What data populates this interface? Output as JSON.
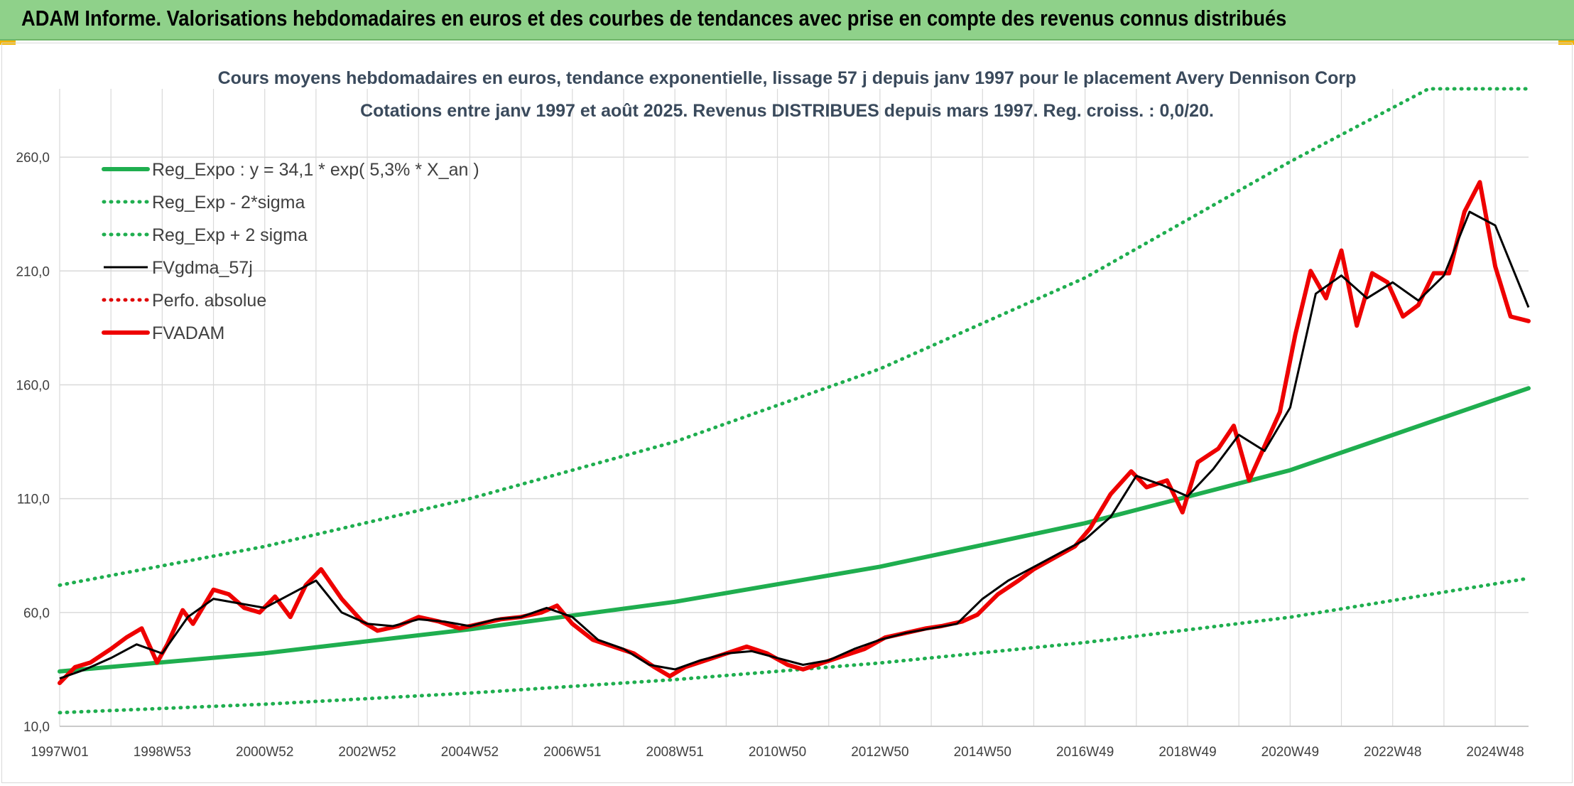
{
  "banner": {
    "title": "ADAM Informe. Valorisations hebdomadaires en euros et des courbes de tendances avec prise en compte des revenus connus distribués"
  },
  "colors": {
    "banner_bg": "#8fd18a",
    "reg_expo": "#1fae4f",
    "sigma": "#1fae4f",
    "fvgdma": "#000000",
    "perfo": "#e00000",
    "fvadam": "#ee0000",
    "grid": "#d9d9d9"
  },
  "chart_data": {
    "type": "line",
    "title": "Cours moyens hebdomadaires en euros, tendance exponentielle, lissage 57 j depuis janv 1997 pour le placement Avery Dennison Corp",
    "subtitle": "Cotations entre janv 1997 et août 2025. Revenus DISTRIBUES depuis mars 1997. Reg. croiss. : 0,0/20.",
    "xlabel": "",
    "ylabel": "",
    "x_range": [
      1997.0,
      2025.65
    ],
    "ylim": [
      10,
      290
    ],
    "y_ticks": [
      10,
      60,
      110,
      160,
      210,
      260
    ],
    "y_tick_labels": [
      "10,0",
      "60,0",
      "110,0",
      "160,0",
      "210,0",
      "260,0"
    ],
    "x_ticks": [
      {
        "x": 1997.0,
        "label": "1997W01"
      },
      {
        "x": 1999.0,
        "label": "1998W53"
      },
      {
        "x": 2001.0,
        "label": "2000W52"
      },
      {
        "x": 2003.0,
        "label": "2002W52"
      },
      {
        "x": 2005.0,
        "label": "2004W52"
      },
      {
        "x": 2007.0,
        "label": "2006W51"
      },
      {
        "x": 2009.0,
        "label": "2008W51"
      },
      {
        "x": 2011.0,
        "label": "2010W50"
      },
      {
        "x": 2013.0,
        "label": "2012W50"
      },
      {
        "x": 2015.0,
        "label": "2014W50"
      },
      {
        "x": 2017.0,
        "label": "2016W49"
      },
      {
        "x": 2019.0,
        "label": "2018W49"
      },
      {
        "x": 2021.0,
        "label": "2020W49"
      },
      {
        "x": 2023.0,
        "label": "2022W48"
      },
      {
        "x": 2025.0,
        "label": "2024W48"
      }
    ],
    "grid": true,
    "legend_position": "top-left",
    "series": [
      {
        "name": "Reg_Expo : y = 34,1 * exp( 5,3% *  X_an )",
        "style": "solid-thick",
        "color": "#1fae4f",
        "x": [
          1997.0,
          2001.0,
          2005.0,
          2009.0,
          2013.0,
          2017.0,
          2021.0,
          2025.65
        ],
        "values": [
          34.1,
          42.1,
          52.6,
          64.7,
          80.1,
          99.2,
          122.5,
          158.5
        ]
      },
      {
        "name": "Reg_Exp - 2*sigma",
        "style": "dotted",
        "color": "#1fae4f",
        "x": [
          1997.0,
          2001.0,
          2005.0,
          2009.0,
          2013.0,
          2017.0,
          2021.0,
          2025.65
        ],
        "values": [
          16.0,
          19.7,
          24.6,
          30.5,
          37.8,
          46.8,
          57.9,
          75.0
        ]
      },
      {
        "name": "Reg_Exp + 2 sigma",
        "style": "dotted",
        "color": "#1fae4f",
        "x": [
          1997.0,
          2001.0,
          2005.0,
          2009.0,
          2013.0,
          2017.0,
          2021.0,
          2023.7,
          2025.65
        ],
        "values": [
          72.0,
          89.0,
          110.0,
          135.0,
          167.0,
          207.0,
          258.0,
          300.0,
          300.0
        ]
      },
      {
        "name": "FVgdma_57j",
        "style": "solid-thin",
        "color": "#000000",
        "x": [
          1997.0,
          1997.5,
          1998.0,
          1998.5,
          1999.0,
          1999.5,
          2000.0,
          2000.5,
          2001.0,
          2001.5,
          2002.0,
          2002.5,
          2003.0,
          2003.5,
          2004.0,
          2004.5,
          2005.0,
          2005.5,
          2006.0,
          2006.5,
          2007.0,
          2007.5,
          2008.0,
          2008.5,
          2009.0,
          2009.5,
          2010.0,
          2010.5,
          2011.0,
          2011.5,
          2012.0,
          2012.5,
          2013.0,
          2013.5,
          2014.0,
          2014.5,
          2015.0,
          2015.5,
          2016.0,
          2016.5,
          2017.0,
          2017.5,
          2018.0,
          2018.5,
          2019.0,
          2019.5,
          2020.0,
          2020.5,
          2021.0,
          2021.5,
          2022.0,
          2022.5,
          2023.0,
          2023.5,
          2024.0,
          2024.5,
          2025.0,
          2025.65
        ],
        "values": [
          31,
          35,
          40,
          46,
          42,
          58,
          66,
          64,
          62,
          68,
          74,
          60,
          55,
          54,
          57,
          56,
          54,
          57,
          58,
          62,
          58,
          48,
          44,
          37,
          35,
          39,
          42,
          43,
          40,
          37,
          39,
          44,
          48,
          51,
          53,
          55,
          66,
          74,
          80,
          86,
          92,
          102,
          120,
          116,
          111,
          123,
          138,
          131,
          150,
          200,
          208,
          198,
          205,
          197,
          208,
          236,
          230,
          194
        ]
      },
      {
        "name": "Perfo. absolue",
        "style": "dotted",
        "color": "#e00000",
        "x": [],
        "values": []
      },
      {
        "name": "FVADAM",
        "style": "solid-thick",
        "color": "#ee0000",
        "x": [
          1997.0,
          1997.3,
          1997.6,
          1998.0,
          1998.3,
          1998.6,
          1998.9,
          1999.1,
          1999.4,
          1999.6,
          2000.0,
          2000.3,
          2000.6,
          2000.9,
          2001.2,
          2001.5,
          2001.8,
          2002.1,
          2002.5,
          2002.9,
          2003.2,
          2003.6,
          2004.0,
          2004.4,
          2004.8,
          2005.2,
          2005.6,
          2006.0,
          2006.4,
          2006.7,
          2007.0,
          2007.4,
          2007.8,
          2008.2,
          2008.6,
          2008.9,
          2009.2,
          2009.6,
          2010.0,
          2010.4,
          2010.8,
          2011.2,
          2011.5,
          2011.9,
          2012.3,
          2012.7,
          2013.1,
          2013.5,
          2013.9,
          2014.2,
          2014.6,
          2014.9,
          2015.3,
          2015.7,
          2016.0,
          2016.4,
          2016.8,
          2017.1,
          2017.5,
          2017.9,
          2018.2,
          2018.6,
          2018.9,
          2019.2,
          2019.6,
          2019.9,
          2020.2,
          2020.5,
          2020.8,
          2021.1,
          2021.4,
          2021.7,
          2022.0,
          2022.3,
          2022.6,
          2022.9,
          2023.2,
          2023.5,
          2023.8,
          2024.1,
          2024.4,
          2024.7,
          2025.0,
          2025.3,
          2025.65
        ],
        "values": [
          29,
          36,
          38,
          44,
          49,
          53,
          38,
          46,
          61,
          55,
          70,
          68,
          62,
          60,
          67,
          58,
          72,
          79,
          66,
          56,
          52,
          54,
          58,
          56,
          53,
          55,
          57,
          58,
          60,
          63,
          55,
          48,
          45,
          42,
          36,
          32,
          36,
          39,
          42,
          45,
          42,
          37,
          35,
          38,
          41,
          44,
          49,
          51,
          53,
          54,
          56,
          59,
          68,
          74,
          79,
          84,
          89,
          97,
          112,
          122,
          115,
          118,
          104,
          126,
          132,
          142,
          118,
          133,
          148,
          182,
          210,
          198,
          219,
          186,
          209,
          205,
          190,
          195,
          209,
          209,
          236,
          249,
          212,
          190,
          188
        ]
      }
    ]
  }
}
